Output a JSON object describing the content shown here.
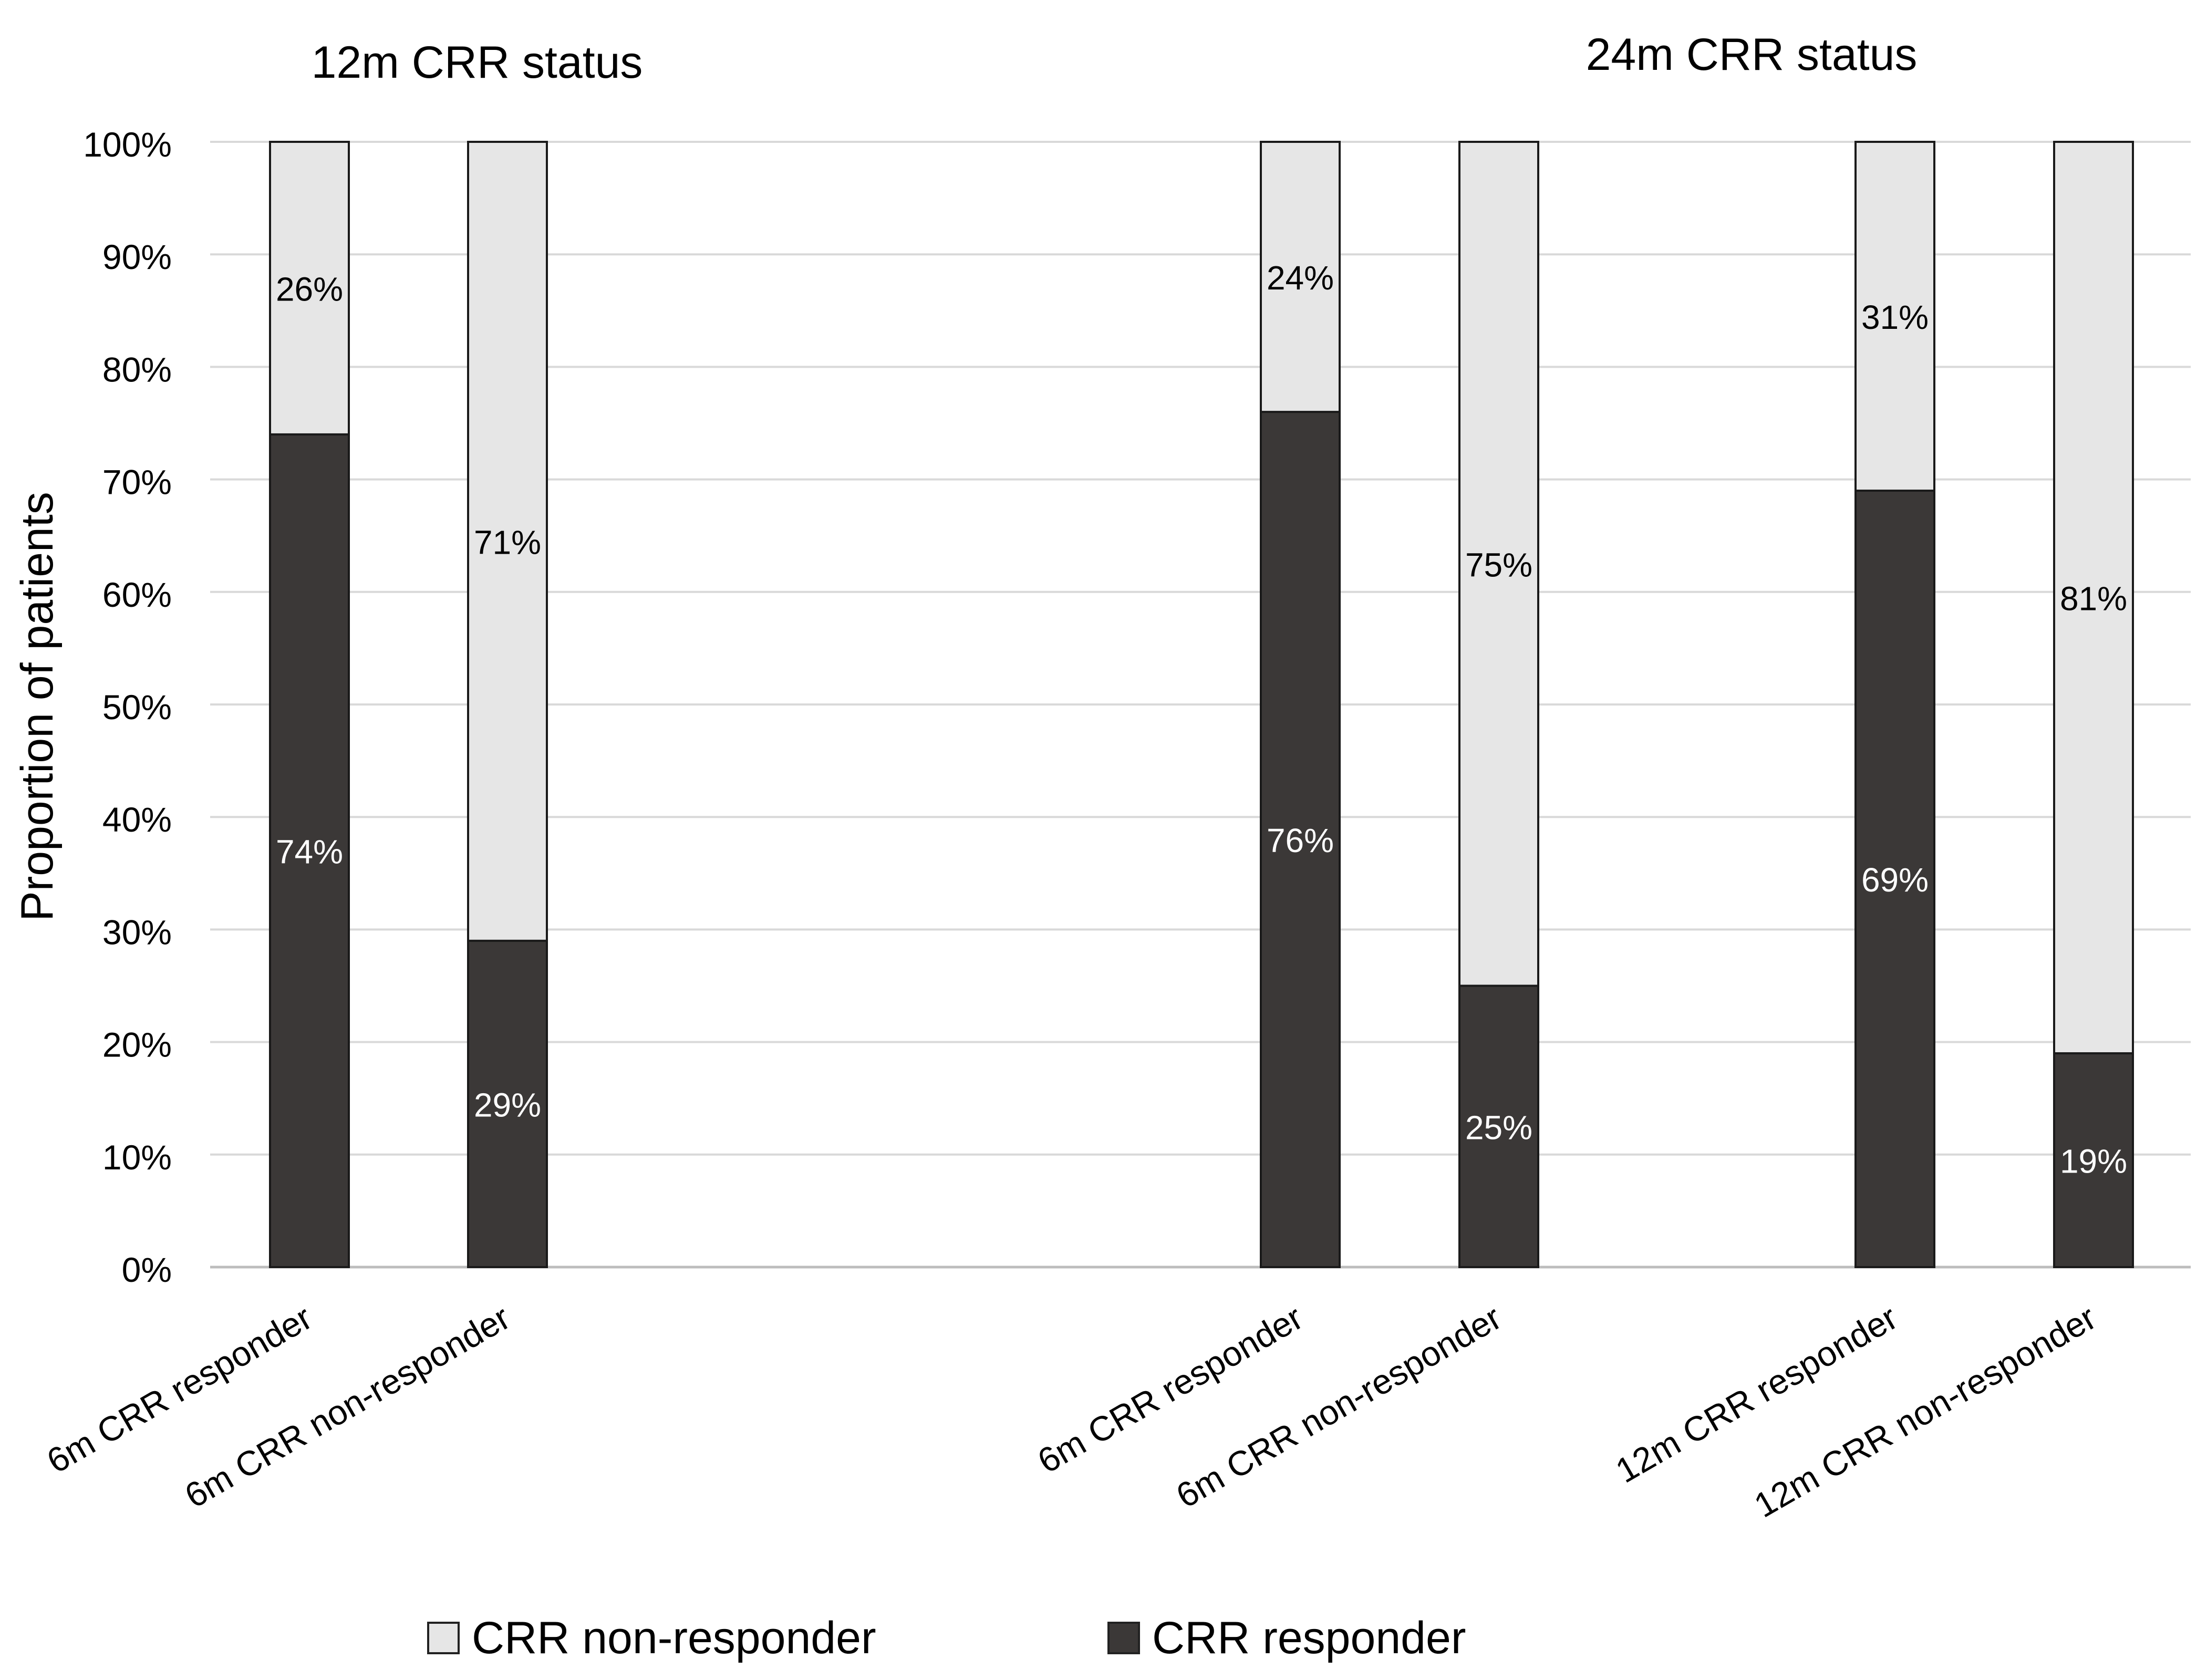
{
  "chart_data": {
    "type": "bar",
    "stacked": true,
    "percent_stacked": true,
    "ylabel": "Proportion of patients",
    "ylim": [
      0,
      100
    ],
    "yticks": [
      "0%",
      "10%",
      "20%",
      "30%",
      "40%",
      "50%",
      "60%",
      "70%",
      "80%",
      "90%",
      "100%"
    ],
    "grid": true,
    "legend_position": "bottom",
    "panels": [
      {
        "title": "12m CRR status",
        "categories": [
          "6m CRR responder",
          "6m CRR non-responder"
        ]
      },
      {
        "title": "24m CRR status",
        "categories": [
          "6m CRR responder",
          "6m CRR non-responder",
          "12m CRR responder",
          "12m CRR non-responder"
        ]
      }
    ],
    "categories": [
      "6m CRR responder",
      "6m CRR non-responder",
      "6m CRR responder",
      "6m CRR non-responder",
      "12m CRR responder",
      "12m CRR non-responder"
    ],
    "series": [
      {
        "name": "CRR responder",
        "color": "#3b3837",
        "label_color": "#ffffff",
        "values": [
          74,
          29,
          76,
          25,
          69,
          19
        ],
        "labels": [
          "74%",
          "29%",
          "76%",
          "25%",
          "69%",
          "19%"
        ]
      },
      {
        "name": "CRR non-responder",
        "color": "#e6e6e6",
        "label_color": "#000000",
        "values": [
          26,
          71,
          24,
          75,
          31,
          81
        ],
        "labels": [
          "26%",
          "71%",
          "24%",
          "75%",
          "31%",
          "81%"
        ]
      }
    ],
    "legend": [
      "CRR non-responder",
      "CRR responder"
    ]
  }
}
